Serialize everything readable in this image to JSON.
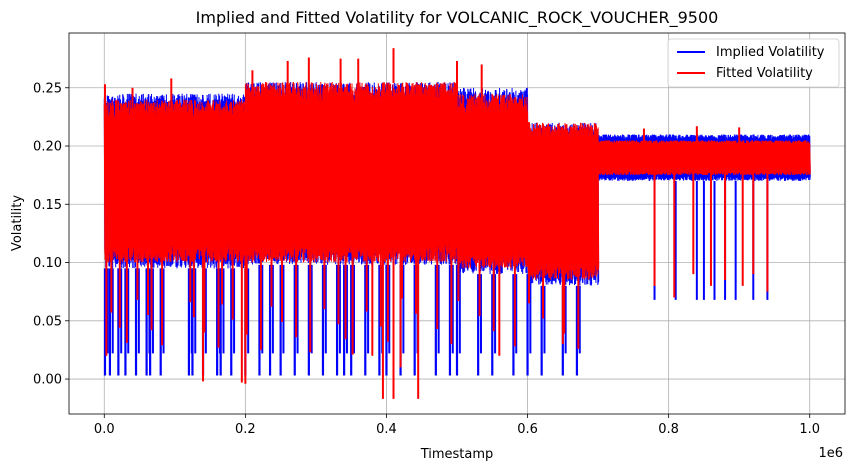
{
  "chart_data": {
    "type": "line",
    "title": "Implied and Fitted Volatility for VOLCANIC_ROCK_VOUCHER_9500",
    "xlabel": "Timestamp",
    "ylabel": "Volatility",
    "x_offset_label": "1e6",
    "xlim": [
      -0.05,
      1.05
    ],
    "ylim": [
      -0.03,
      0.297
    ],
    "x_ticks": [
      0.0,
      0.2,
      0.4,
      0.6,
      0.8,
      1.0
    ],
    "x_tick_labels": [
      "0.0",
      "0.2",
      "0.4",
      "0.6",
      "0.8",
      "1.0"
    ],
    "y_ticks": [
      0.0,
      0.05,
      0.1,
      0.15,
      0.2,
      0.25
    ],
    "y_tick_labels": [
      "0.00",
      "0.05",
      "0.10",
      "0.15",
      "0.20",
      "0.25"
    ],
    "grid": true,
    "legend_position": "top-right",
    "series": [
      {
        "name": "Implied Volatility",
        "color": "#0000ff",
        "segments": [
          {
            "x": [
              0.0,
              0.2
            ],
            "low": 0.095,
            "high": 0.245
          },
          {
            "x": [
              0.2,
              0.5
            ],
            "low": 0.098,
            "high": 0.255
          },
          {
            "x": [
              0.5,
              0.6
            ],
            "low": 0.09,
            "high": 0.25
          },
          {
            "x": [
              0.6,
              0.7
            ],
            "low": 0.08,
            "high": 0.22
          },
          {
            "x": [
              0.7,
              1.0
            ],
            "low": 0.17,
            "high": 0.21
          }
        ],
        "spike_bottom": 0.003,
        "spike_x": [
          0.001,
          0.008,
          0.02,
          0.03,
          0.045,
          0.06,
          0.065,
          0.08,
          0.12,
          0.125,
          0.14,
          0.16,
          0.165,
          0.18,
          0.2,
          0.22,
          0.235,
          0.25,
          0.27,
          0.29,
          0.31,
          0.33,
          0.34,
          0.35,
          0.37,
          0.39,
          0.4,
          0.42,
          0.44,
          0.47,
          0.49,
          0.5,
          0.53,
          0.55,
          0.58,
          0.6,
          0.62,
          0.65,
          0.67
        ],
        "late_spike_x": [
          0.78,
          0.81,
          0.84,
          0.85,
          0.865,
          0.88,
          0.895,
          0.92,
          0.94
        ],
        "late_spike_bottom": 0.068
      },
      {
        "name": "Fitted Volatility",
        "color": "#ff0000",
        "segments": [
          {
            "x": [
              0.0,
              0.2
            ],
            "low": 0.1,
            "high": 0.24
          },
          {
            "x": [
              0.2,
              0.5
            ],
            "low": 0.1,
            "high": 0.255
          },
          {
            "x": [
              0.5,
              0.6
            ],
            "low": 0.095,
            "high": 0.245
          },
          {
            "x": [
              0.6,
              0.7
            ],
            "low": 0.085,
            "high": 0.22
          },
          {
            "x": [
              0.7,
              1.0
            ],
            "low": 0.175,
            "high": 0.205
          }
        ],
        "peaks": [
          {
            "x": 0.001,
            "y": 0.253
          },
          {
            "x": 0.04,
            "y": 0.25
          },
          {
            "x": 0.095,
            "y": 0.258
          },
          {
            "x": 0.21,
            "y": 0.265
          },
          {
            "x": 0.26,
            "y": 0.273
          },
          {
            "x": 0.29,
            "y": 0.276
          },
          {
            "x": 0.335,
            "y": 0.275
          },
          {
            "x": 0.36,
            "y": 0.275
          },
          {
            "x": 0.41,
            "y": 0.284
          },
          {
            "x": 0.5,
            "y": 0.273
          },
          {
            "x": 0.535,
            "y": 0.27
          },
          {
            "x": 0.765,
            "y": 0.215
          },
          {
            "x": 0.84,
            "y": 0.217
          },
          {
            "x": 0.9,
            "y": 0.216
          }
        ],
        "troughs": [
          {
            "x": 0.14,
            "y": -0.002
          },
          {
            "x": 0.195,
            "y": -0.003
          },
          {
            "x": 0.2,
            "y": -0.004
          },
          {
            "x": 0.395,
            "y": -0.017
          },
          {
            "x": 0.41,
            "y": -0.017
          },
          {
            "x": 0.445,
            "y": -0.017
          },
          {
            "x": 0.42,
            "y": 0.01
          },
          {
            "x": 0.38,
            "y": 0.02
          },
          {
            "x": 0.56,
            "y": 0.02
          },
          {
            "x": 0.65,
            "y": 0.03
          },
          {
            "x": 0.78,
            "y": 0.08
          },
          {
            "x": 0.808,
            "y": 0.07
          },
          {
            "x": 0.835,
            "y": 0.09
          },
          {
            "x": 0.86,
            "y": 0.08
          },
          {
            "x": 0.88,
            "y": 0.085
          },
          {
            "x": 0.905,
            "y": 0.08
          },
          {
            "x": 0.92,
            "y": 0.09
          },
          {
            "x": 0.94,
            "y": 0.075
          }
        ]
      }
    ]
  }
}
